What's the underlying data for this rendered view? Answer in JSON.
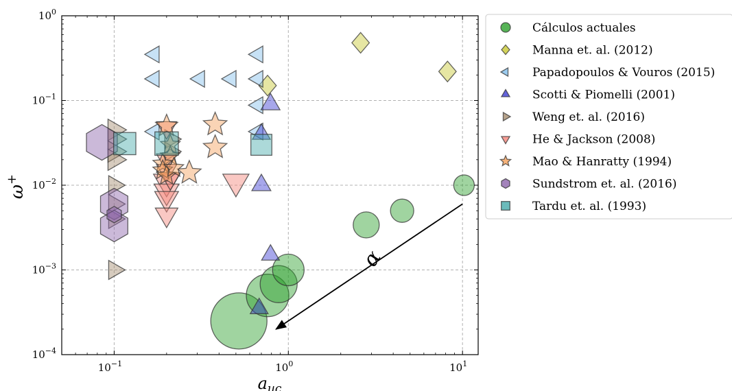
{
  "chart_data": {
    "type": "scatter",
    "title": "",
    "xlabel": "a_uc",
    "ylabel": "ω+",
    "xscale": "log",
    "yscale": "log",
    "xlim": [
      0.05,
      12.3
    ],
    "ylim": [
      0.0001,
      1
    ],
    "grid": true,
    "legend_position": "right, outside",
    "x_ticks": [
      {
        "value": 0.1,
        "base": "10",
        "exp": "−1"
      },
      {
        "value": 1,
        "base": "10",
        "exp": "0"
      },
      {
        "value": 10,
        "base": "10",
        "exp": "1"
      }
    ],
    "y_ticks": [
      {
        "value": 1,
        "base": "10",
        "exp": "0"
      },
      {
        "value": 0.1,
        "base": "10",
        "exp": "−1"
      },
      {
        "value": 0.01,
        "base": "10",
        "exp": "−2"
      },
      {
        "value": 0.001,
        "base": "10",
        "exp": "−3"
      },
      {
        "value": 0.0001,
        "base": "10",
        "exp": "−4"
      }
    ],
    "series": [
      {
        "name": "Cálculos actuales",
        "marker": "circle",
        "color": "#2ca02c",
        "points": [
          [
            0.52,
            0.00025,
            41
          ],
          [
            0.76,
            0.0005,
            31
          ],
          [
            0.88,
            0.00068,
            27
          ],
          [
            1.0,
            0.001,
            23
          ],
          [
            2.8,
            0.0034,
            19
          ],
          [
            4.5,
            0.005,
            17
          ],
          [
            10.2,
            0.01,
            15
          ]
        ]
      },
      {
        "name": "Manna et. al. (2012)",
        "marker": "diamond",
        "color": "#c8c832",
        "points": [
          [
            2.6,
            0.48,
            15
          ],
          [
            8.2,
            0.22,
            15
          ],
          [
            0.76,
            0.15,
            15
          ]
        ]
      },
      {
        "name": "Papadopoulos & Vouros (2015)",
        "marker": "triangle-left",
        "color": "#82beeb",
        "points": [
          [
            0.17,
            0.35,
            14
          ],
          [
            0.67,
            0.35,
            14
          ],
          [
            0.17,
            0.18,
            14
          ],
          [
            0.31,
            0.18,
            14
          ],
          [
            0.47,
            0.18,
            14
          ],
          [
            0.67,
            0.18,
            14
          ],
          [
            0.67,
            0.088,
            14
          ],
          [
            0.17,
            0.043,
            14
          ],
          [
            0.67,
            0.043,
            14
          ]
        ]
      },
      {
        "name": "Scotti & Piomelli (2001)",
        "marker": "triangle-up",
        "color": "#3c3cd2",
        "points": [
          [
            0.79,
            0.09,
            16
          ],
          [
            0.7,
            0.04,
            15
          ],
          [
            0.7,
            0.01,
            16
          ],
          [
            0.79,
            0.0015,
            15
          ],
          [
            0.68,
            0.00035,
            15
          ]
        ]
      },
      {
        "name": "Weng et. al. (2016)",
        "marker": "triangle-right",
        "color": "#a58c6e",
        "points": [
          [
            0.1,
            0.045,
            18
          ],
          [
            0.1,
            0.035,
            18
          ],
          [
            0.1,
            0.025,
            18
          ],
          [
            0.1,
            0.02,
            18
          ],
          [
            0.1,
            0.01,
            16
          ],
          [
            0.1,
            0.006,
            16
          ],
          [
            0.1,
            0.004,
            16
          ],
          [
            0.1,
            0.001,
            16
          ],
          [
            0.21,
            0.035,
            16
          ],
          [
            0.21,
            0.025,
            16
          ]
        ]
      },
      {
        "name": "He & Jackson (2008)",
        "marker": "triangle-down",
        "color": "#f5847a",
        "points": [
          [
            0.5,
            0.011,
            22
          ],
          [
            0.2,
            0.011,
            22
          ],
          [
            0.2,
            0.0085,
            21
          ],
          [
            0.2,
            0.007,
            20
          ],
          [
            0.2,
            0.0045,
            19
          ],
          [
            0.2,
            0.048,
            17
          ],
          [
            0.2,
            0.02,
            17
          ],
          [
            0.2,
            0.015,
            17
          ],
          [
            0.21,
            0.012,
            17
          ]
        ]
      },
      {
        "name": "Mao & Hanratty (1994)",
        "marker": "star",
        "color": "#f5a05a",
        "points": [
          [
            0.2,
            0.05,
            17
          ],
          [
            0.38,
            0.052,
            18
          ],
          [
            0.38,
            0.028,
            18
          ],
          [
            0.27,
            0.014,
            18
          ],
          [
            0.21,
            0.03,
            15
          ],
          [
            0.21,
            0.022,
            15
          ],
          [
            0.19,
            0.018,
            15
          ],
          [
            0.19,
            0.015,
            15
          ],
          [
            0.2,
            0.013,
            15
          ],
          [
            0.22,
            0.016,
            15
          ]
        ]
      },
      {
        "name": "Sundstrom et. al. (2016)",
        "marker": "hexagon",
        "color": "#8c64aa",
        "points": [
          [
            0.085,
            0.032,
            26
          ],
          [
            0.1,
            0.006,
            23
          ],
          [
            0.1,
            0.0033,
            23
          ],
          [
            0.1,
            0.0045,
            12
          ]
        ]
      },
      {
        "name": "Tardu et. al. (1993)",
        "marker": "square",
        "color": "#46aaaa",
        "points": [
          [
            0.115,
            0.031,
            18
          ],
          [
            0.2,
            0.031,
            19
          ],
          [
            0.7,
            0.03,
            17
          ]
        ]
      }
    ],
    "annotations": [
      {
        "text": "α",
        "type": "arrow",
        "from": [
          10,
          0.006
        ],
        "to": [
          0.85,
          0.0002
        ]
      }
    ]
  }
}
